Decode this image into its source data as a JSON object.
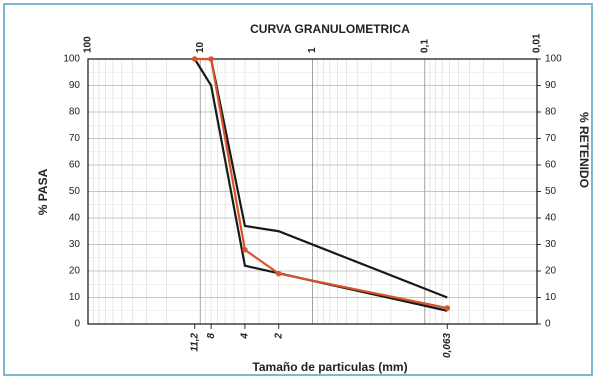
{
  "chart_data": {
    "type": "line",
    "title": "CURVA GRANULOMETRICA",
    "x_label": "Tamaño de particulas (mm)",
    "y_label": "% PASA",
    "y2_label": "% RETENIDO",
    "x_scale": "log",
    "xlim": [
      100,
      0.01
    ],
    "ylim": [
      0,
      100
    ],
    "y2lim": [
      100,
      0
    ],
    "xticks": [
      {
        "value": 11.2,
        "label": "11,2"
      },
      8,
      4,
      2,
      {
        "value": 0.063,
        "label": "0,063"
      }
    ],
    "x2ticks": [
      100,
      10,
      1,
      {
        "value": 0.1,
        "label": "0,1"
      },
      {
        "value": 0.01,
        "label": "0,01"
      }
    ],
    "yticks": [
      0,
      10,
      20,
      30,
      40,
      50,
      60,
      70,
      80,
      90,
      100
    ],
    "y2ticks": [
      0,
      10,
      20,
      30,
      40,
      50,
      60,
      70,
      80,
      90,
      100
    ],
    "grid": true,
    "series": [
      {
        "color": "#1a1a1a",
        "x": [
          11.2,
          8,
          4,
          0.063
        ],
        "values": [
          100,
          90,
          22,
          5
        ]
      },
      {
        "color": "#1a1a1a",
        "x": [
          8,
          4,
          2,
          0.063
        ],
        "values": [
          100,
          37,
          35,
          10
        ]
      },
      {
        "color": "#d9542b",
        "x": [
          11.2,
          8,
          4,
          2,
          0.063
        ],
        "values": [
          100,
          100,
          28,
          19,
          6
        ],
        "markers": true
      }
    ]
  }
}
